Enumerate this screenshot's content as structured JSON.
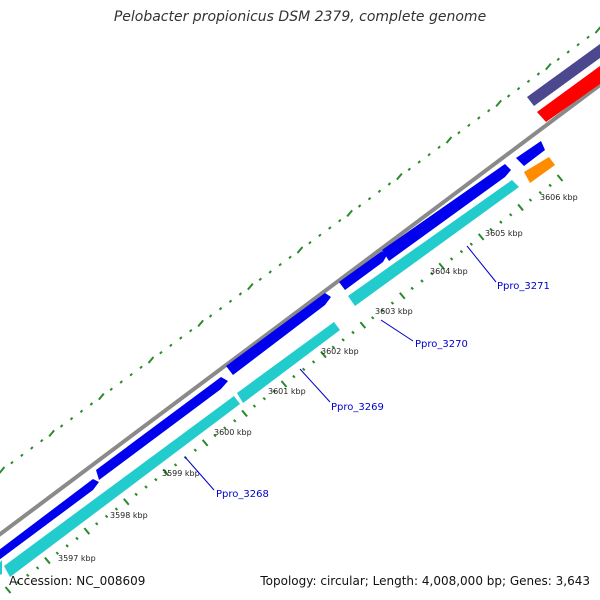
{
  "title": "Pelobacter propionicus DSM 2379, complete genome",
  "footer": {
    "accession": "Accession: NC_008609",
    "summary": "Topology: circular; Length: 4,008,000 bp; Genes: 3,643"
  },
  "colors": {
    "backbone": "#8a8a8a",
    "forward_cds": "#0000ee",
    "reverse_cds": "#22cccc",
    "top_feature": "#4b4890",
    "red_feature": "#ff0000",
    "orange_feature": "#ff8c00",
    "tick": "#2b8a2b",
    "label": "#0000cc"
  },
  "scale_labels": [
    "3597 kbp",
    "3598 kbp",
    "3599 kbp",
    "3600 kbp",
    "3601 kbp",
    "3602 kbp",
    "3603 kbp",
    "3604 kbp",
    "3605 kbp",
    "3606 kbp"
  ],
  "gene_labels": [
    "Ppro_3268",
    "Ppro_3269",
    "Ppro_3270",
    "Ppro_3271"
  ]
}
